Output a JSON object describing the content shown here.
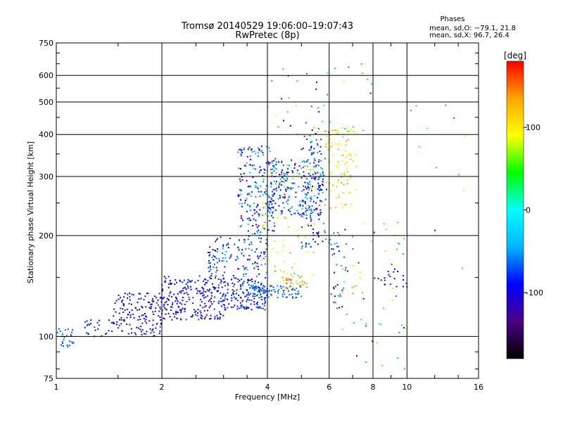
{
  "chart_data": {
    "type": "scatter",
    "title": "Tromsø 20140529 19:06:00–19:07:43",
    "subtitle": "RwPretec (8p)",
    "xlabel": "Frequency [MHz]",
    "ylabel": "Stationary phase Virtual Height [km]",
    "x_scale": "log",
    "y_scale": "log",
    "xlim": [
      1,
      16
    ],
    "ylim": [
      75,
      750
    ],
    "x_ticks": [
      1,
      2,
      4,
      6,
      8,
      10,
      16
    ],
    "x_tick_labels": [
      "1",
      "2",
      "4",
      "6",
      "8",
      "10",
      "16"
    ],
    "y_ticks": [
      75,
      100,
      200,
      300,
      400,
      500,
      600,
      750
    ],
    "y_tick_labels": [
      "75",
      "100",
      "200",
      "300",
      "400",
      "500",
      "600",
      "750"
    ],
    "grid": true,
    "colorbar": {
      "label": "[deg]",
      "range": [
        -180,
        180
      ],
      "ticks": [
        -100,
        0,
        100
      ],
      "tick_labels": [
        "-100",
        "0",
        "100"
      ],
      "colors": [
        "#000000",
        "#4b0082",
        "#0000ff",
        "#00b4ff",
        "#00ffff",
        "#00ff00",
        "#ffff00",
        "#ffa500",
        "#ff0000"
      ]
    },
    "stats": {
      "heading": "Phases",
      "line_o": "mean, sd,O: −79.1, 21.8",
      "line_x": "mean, sd,X:  96.7, 26.4"
    },
    "series": [
      {
        "clusters": [
          {
            "f": [
              1.0,
              1.12
            ],
            "h": [
              93,
              108
            ],
            "phase": [
              -75,
              -62
            ],
            "n": 26
          },
          {
            "f": [
              1.2,
              1.45
            ],
            "h": [
              100,
              112
            ],
            "phase": [
              -95,
              -70
            ],
            "n": 25
          },
          {
            "f": [
              1.45,
              2.0
            ],
            "h": [
              100,
              135
            ],
            "phase": [
              -125,
              -75
            ],
            "n": 150
          },
          {
            "f": [
              2.0,
              3.0
            ],
            "h": [
              112,
              152
            ],
            "phase": [
              -115,
              -72
            ],
            "n": 240
          },
          {
            "f": [
              3.0,
              4.0
            ],
            "h": [
              120,
              150
            ],
            "phase": [
              -110,
              -65
            ],
            "n": 150
          },
          {
            "f": [
              3.5,
              5.0
            ],
            "h": [
              130,
              142
            ],
            "phase": [
              -80,
              -50
            ],
            "n": 90
          },
          {
            "f": [
              2.7,
              4.0
            ],
            "h": [
              150,
              200
            ],
            "phase": [
              -120,
              -45
            ],
            "n": 130
          },
          {
            "f": [
              3.3,
              4.2
            ],
            "h": [
              200,
              370
            ],
            "phase": [
              -120,
              -30
            ],
            "n": 190
          },
          {
            "f": [
              4.0,
              5.8
            ],
            "h": [
              230,
              340
            ],
            "phase": [
              -115,
              -35
            ],
            "n": 230
          },
          {
            "f": [
              5.0,
              5.9
            ],
            "h": [
              180,
              420
            ],
            "phase": [
              -110,
              -45
            ],
            "n": 110
          },
          {
            "f": [
              3.8,
              5.5
            ],
            "h": [
              150,
              330
            ],
            "phase": [
              40,
              150
            ],
            "n": 70
          },
          {
            "f": [
              4.4,
              5.2
            ],
            "h": [
              138,
              152
            ],
            "phase": [
              105,
              165
            ],
            "n": 30
          },
          {
            "f": [
              5.8,
              7.2
            ],
            "h": [
              240,
              420
            ],
            "phase": [
              70,
              140
            ],
            "n": 90
          },
          {
            "f": [
              6.0,
              6.8
            ],
            "h": [
              120,
              210
            ],
            "phase": [
              -120,
              -45
            ],
            "n": 40
          },
          {
            "f": [
              6.4,
              10.0
            ],
            "h": [
              80,
              220
            ],
            "phase": [
              -120,
              150
            ],
            "n": 55
          },
          {
            "f": [
              4.0,
              8.0
            ],
            "h": [
              400,
              650
            ],
            "phase": [
              -120,
              150
            ],
            "n": 45
          },
          {
            "f": [
              8.0,
              10.0
            ],
            "h": [
              140,
              160
            ],
            "phase": [
              -110,
              -80
            ],
            "n": 20
          },
          {
            "f": [
              10.0,
              15.0
            ],
            "h": [
              130,
              600
            ],
            "phase": [
              -110,
              110
            ],
            "n": 12
          }
        ]
      }
    ]
  }
}
